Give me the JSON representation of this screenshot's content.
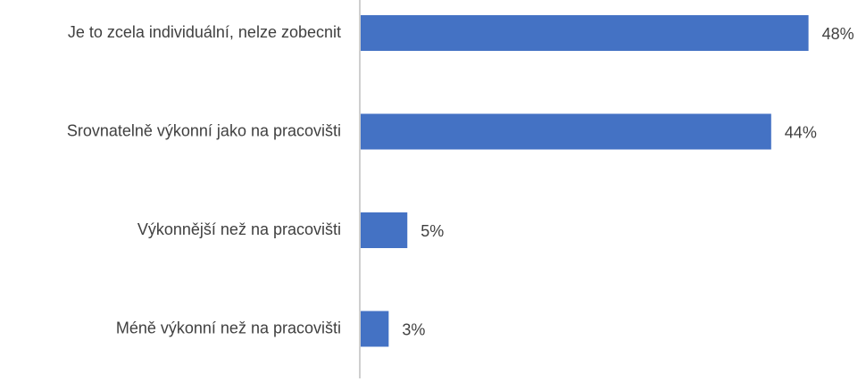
{
  "chart_data": {
    "type": "bar",
    "orientation": "horizontal",
    "categories": [
      "Je to zcela individuální, nelze zobecnit",
      "Srovnatelně výkonní jako na pracovišti",
      "Výkonnější než na pracovišti",
      "Méně výkonní než na pracovišti"
    ],
    "values": [
      48,
      44,
      5,
      3
    ],
    "value_labels": [
      "48%",
      "44%",
      "5%",
      "3%"
    ],
    "color": "#4472c4"
  }
}
